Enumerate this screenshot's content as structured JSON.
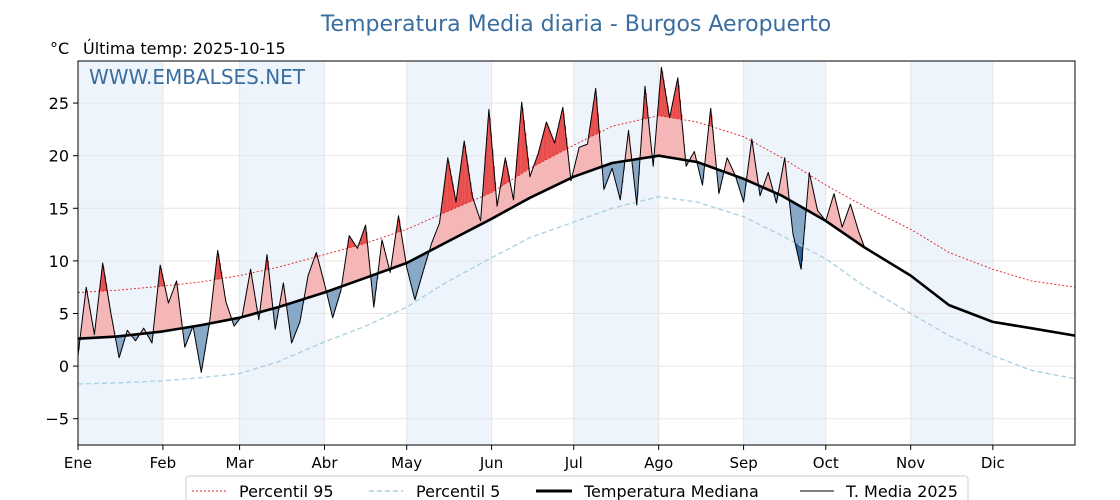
{
  "title": "Temperatura Media diaria - Burgos Aeropuerto",
  "subtitle": "Última temp: 2025-10-15",
  "unit": "°C",
  "watermark": "WWW.EMBALSES.NET",
  "colors": {
    "title": "#3a6ea0",
    "p95": "#e02020",
    "p5": "#a8d0e0",
    "median": "#000000",
    "year": "#000000",
    "above_fill": "#f4b6b6",
    "above_extreme_fill": "#e84a4a",
    "below_fill": "#88a8c8",
    "below_extreme_fill": "#2a5f98",
    "month_band": "#eef4fb"
  },
  "chart_data": {
    "type": "line",
    "x_unit": "month",
    "xlim": [
      "Ene",
      "Dic"
    ],
    "ylim": [
      -7.5,
      29
    ],
    "yticks": [
      -5,
      0,
      5,
      10,
      15,
      20,
      25
    ],
    "months": [
      "Ene",
      "Feb",
      "Mar",
      "Abr",
      "May",
      "Jun",
      "Jul",
      "Ago",
      "Sep",
      "Oct",
      "Nov",
      "Dic"
    ],
    "month_start_days": [
      1,
      32,
      60,
      91,
      121,
      152,
      182,
      213,
      244,
      274,
      305,
      335
    ],
    "grid": true,
    "legend_position": "bottom",
    "series": [
      {
        "name": "Percentil 95",
        "style": "dotted",
        "x": [
          1,
          15,
          32,
          46,
          60,
          74,
          91,
          105,
          121,
          135,
          152,
          166,
          182,
          196,
          213,
          227,
          244,
          258,
          274,
          288,
          305,
          319,
          335,
          349,
          365
        ],
        "values": [
          7.0,
          7.2,
          7.6,
          8.0,
          8.6,
          9.4,
          10.6,
          11.6,
          13.0,
          14.6,
          16.5,
          18.8,
          21.0,
          22.8,
          23.8,
          23.2,
          21.8,
          19.8,
          17.2,
          15.2,
          13.0,
          10.8,
          9.2,
          8.1,
          7.5
        ]
      },
      {
        "name": "Percentil 5",
        "style": "dashed",
        "x": [
          1,
          15,
          32,
          46,
          60,
          74,
          91,
          105,
          121,
          135,
          152,
          166,
          182,
          196,
          213,
          227,
          244,
          258,
          274,
          288,
          305,
          319,
          335,
          349,
          365
        ],
        "values": [
          -1.7,
          -1.6,
          -1.4,
          -1.1,
          -0.7,
          0.4,
          2.3,
          3.7,
          5.6,
          7.9,
          10.3,
          12.2,
          13.7,
          15.0,
          16.1,
          15.6,
          14.2,
          12.4,
          10.2,
          7.6,
          5.0,
          2.9,
          1.0,
          -0.4,
          -1.2
        ]
      },
      {
        "name": "Temperatura Mediana",
        "style": "thick",
        "x": [
          1,
          15,
          32,
          46,
          60,
          74,
          91,
          105,
          121,
          135,
          152,
          166,
          182,
          196,
          213,
          227,
          244,
          258,
          274,
          288,
          305,
          319,
          335,
          349,
          365
        ],
        "values": [
          2.6,
          2.8,
          3.3,
          3.9,
          4.6,
          5.6,
          7.0,
          8.3,
          9.8,
          11.7,
          14.0,
          16.0,
          18.0,
          19.3,
          20.0,
          19.4,
          17.8,
          16.2,
          13.8,
          11.3,
          8.6,
          5.8,
          4.2,
          3.6,
          2.9
        ]
      },
      {
        "name": "T. Media 2025",
        "style": "thin",
        "x": [
          1,
          4,
          7,
          10,
          13,
          16,
          19,
          22,
          25,
          28,
          31,
          34,
          37,
          40,
          43,
          46,
          49,
          52,
          55,
          58,
          61,
          64,
          67,
          70,
          73,
          76,
          79,
          82,
          85,
          88,
          91,
          94,
          97,
          100,
          103,
          106,
          109,
          112,
          115,
          118,
          121,
          124,
          127,
          130,
          133,
          136,
          139,
          142,
          145,
          148,
          151,
          154,
          157,
          160,
          163,
          166,
          169,
          172,
          175,
          178,
          181,
          184,
          187,
          190,
          193,
          196,
          199,
          202,
          205,
          208,
          211,
          214,
          217,
          220,
          223,
          226,
          229,
          232,
          235,
          238,
          241,
          244,
          247,
          250,
          253,
          256,
          259,
          262,
          265,
          268,
          271,
          274,
          277,
          280,
          283,
          286,
          288
        ],
        "values": [
          1.0,
          7.5,
          3.0,
          9.8,
          5.0,
          0.8,
          3.4,
          2.4,
          3.6,
          2.2,
          9.6,
          6.0,
          8.1,
          1.8,
          3.8,
          -0.6,
          4.1,
          11.0,
          6.1,
          3.8,
          4.8,
          9.2,
          4.4,
          10.6,
          3.5,
          7.9,
          2.2,
          4.2,
          8.6,
          10.8,
          7.8,
          4.6,
          7.2,
          12.4,
          11.2,
          13.4,
          5.6,
          12.0,
          8.9,
          14.3,
          9.4,
          6.3,
          9.0,
          11.6,
          13.6,
          19.8,
          15.6,
          21.4,
          16.1,
          13.8,
          24.4,
          15.2,
          19.8,
          15.8,
          25.1,
          18.0,
          20.2,
          23.2,
          21.2,
          24.6,
          17.6,
          20.8,
          21.1,
          26.4,
          16.8,
          18.8,
          15.8,
          22.4,
          15.3,
          26.6,
          19.0,
          28.4,
          23.6,
          27.4,
          19.0,
          20.4,
          17.2,
          24.5,
          16.4,
          19.8,
          18.1,
          15.6,
          21.6,
          16.2,
          18.4,
          15.5,
          19.8,
          12.6,
          9.2,
          18.4,
          14.8,
          13.8,
          16.4,
          13.2,
          15.4,
          12.8,
          11.4
        ]
      }
    ]
  },
  "legend": {
    "p95": "Percentil 95",
    "p5": "Percentil 5",
    "median": "Temperatura Mediana",
    "year": "T. Media 2025"
  }
}
